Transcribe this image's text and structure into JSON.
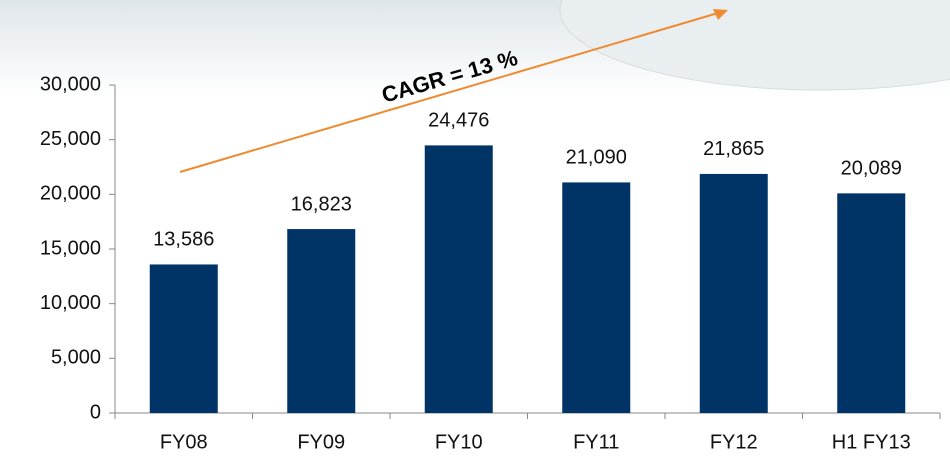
{
  "chart_data": {
    "type": "bar",
    "categories": [
      "FY08",
      "FY09",
      "FY10",
      "FY11",
      "FY12",
      "H1 FY13"
    ],
    "values": [
      13586,
      16823,
      24476,
      21090,
      21865,
      20089
    ],
    "value_labels": [
      "13,586",
      "16,823",
      "24,476",
      "21,090",
      "21,865",
      "20,089"
    ],
    "color": "#003366",
    "ylim": [
      0,
      30000
    ],
    "yticks": [
      0,
      {
        "value": 5000,
        "label": "5,000"
      },
      {
        "value": 10000,
        "label": "10,000"
      },
      {
        "value": 15000,
        "label": "15,000"
      },
      {
        "value": 20000,
        "label": "20,000"
      },
      {
        "value": 25000,
        "label": "25,000"
      },
      {
        "value": 30000,
        "label": "30,000"
      }
    ],
    "annotation": "CAGR = 13 %",
    "annotation_color": "#f08a30",
    "grid": false
  }
}
